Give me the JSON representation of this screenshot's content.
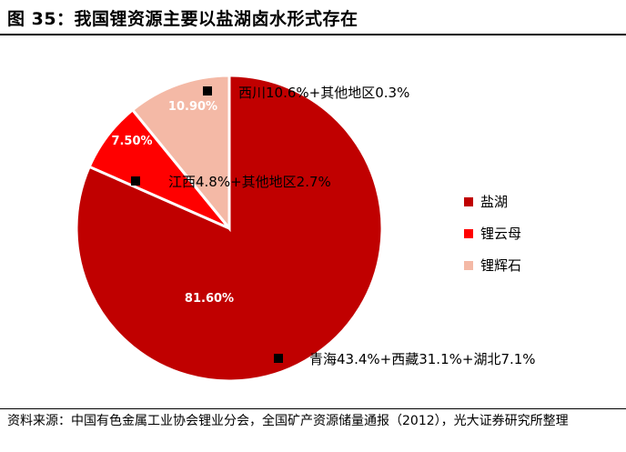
{
  "title": "图 35：我国锂资源主要以盐湖卤水形式存在",
  "source": "资料来源：中国有色金属工业协会锂业分会，全国矿产资源储量通报（2012），光大证券研究所整理",
  "chart_data": {
    "type": "pie",
    "slices": [
      {
        "name": "盐湖",
        "value": 81.6,
        "label": "81.60%",
        "color": "#c00000",
        "annotation": "青海43.4%+西藏31.1%+湖北7.1%"
      },
      {
        "name": "锂云母",
        "value": 7.5,
        "label": "7.50%",
        "color": "#ff0000",
        "annotation": "江西4.8%+其他地区2.7%"
      },
      {
        "name": "锂辉石",
        "value": 10.9,
        "label": "10.90%",
        "color": "#f4b9a6",
        "annotation": "西川10.6%+其他地区0.3%"
      }
    ],
    "legend_position": "right"
  }
}
